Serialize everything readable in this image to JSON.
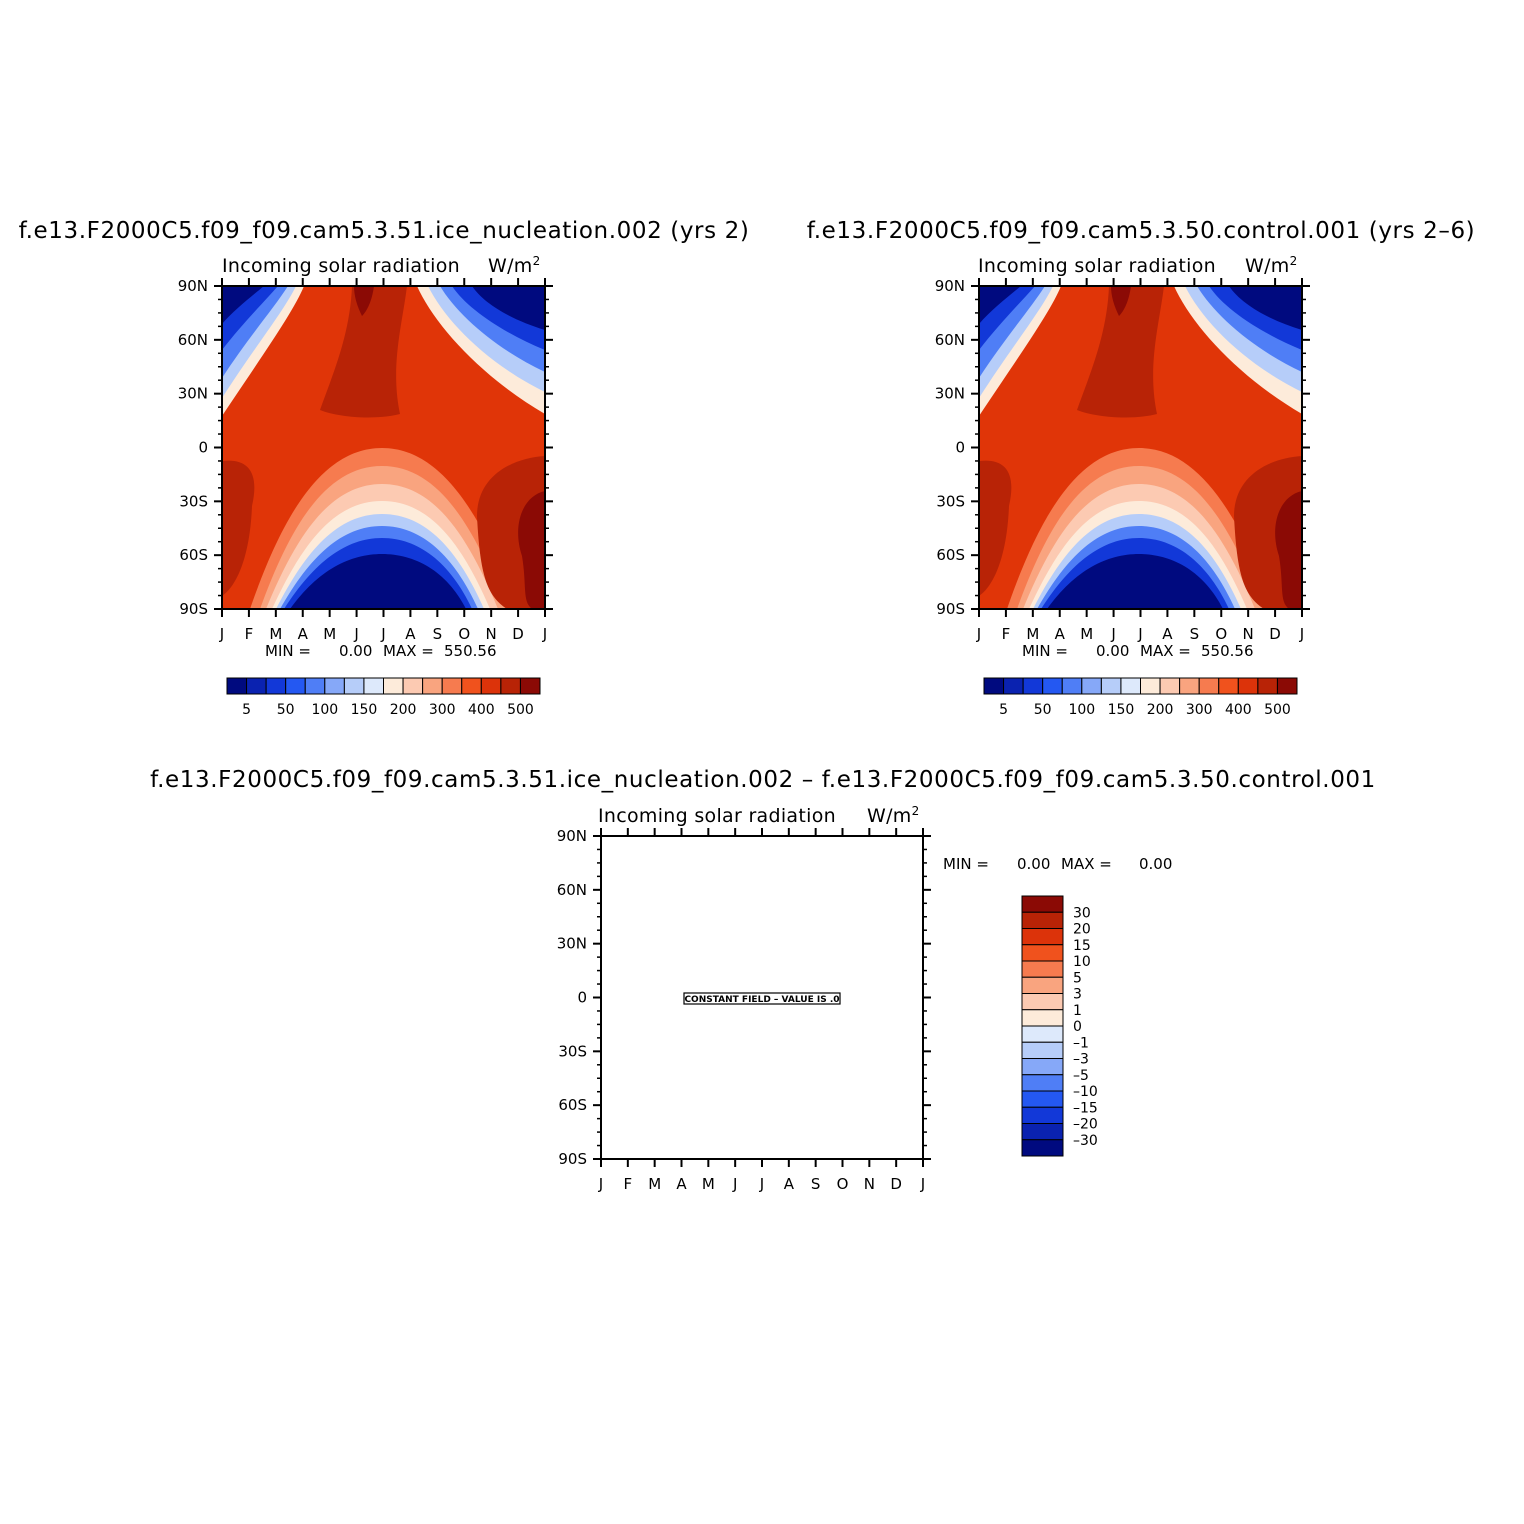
{
  "chart_data": [
    {
      "type": "heatmap",
      "title": "f.e13.F2000C5.f09_f09.cam5.3.51.ice_nucleation.002 (yrs 2)",
      "subtitle": "Incoming solar radiation",
      "units_base": "W/m",
      "units_sup": "2",
      "x_tick_labels": [
        "J",
        "F",
        "M",
        "A",
        "M",
        "J",
        "J",
        "A",
        "S",
        "O",
        "N",
        "D",
        "J"
      ],
      "y_tick_labels": [
        "90N",
        "60N",
        "30N",
        "0",
        "30S",
        "60S",
        "90S"
      ],
      "ylim": [
        -90,
        90
      ],
      "min_label": "MIN =",
      "min_value": "0.00",
      "max_label": "MAX =",
      "max_value": "550.56",
      "colorbar": {
        "orientation": "horizontal",
        "labels": [
          "5",
          "50",
          "100",
          "150",
          "200",
          "300",
          "400",
          "500"
        ],
        "colors": [
          "#000a7f",
          "#0a22b0",
          "#1238d8",
          "#2458f2",
          "#4f7ef6",
          "#86a8f8",
          "#b6cdf9",
          "#dde9fb",
          "#fdebda",
          "#fccab2",
          "#f9a47f",
          "#f67b4f",
          "#f0521d",
          "#dc330a",
          "#b82306",
          "#8b0a05"
        ]
      }
    },
    {
      "type": "heatmap",
      "title": "f.e13.F2000C5.f09_f09.cam5.3.50.control.001 (yrs 2–6)",
      "subtitle": "Incoming solar radiation",
      "units_base": "W/m",
      "units_sup": "2",
      "x_tick_labels": [
        "J",
        "F",
        "M",
        "A",
        "M",
        "J",
        "J",
        "A",
        "S",
        "O",
        "N",
        "D",
        "J"
      ],
      "y_tick_labels": [
        "90N",
        "60N",
        "30N",
        "0",
        "30S",
        "60S",
        "90S"
      ],
      "ylim": [
        -90,
        90
      ],
      "min_label": "MIN =",
      "min_value": "0.00",
      "max_label": "MAX =",
      "max_value": "550.56",
      "colorbar": {
        "orientation": "horizontal",
        "labels": [
          "5",
          "50",
          "100",
          "150",
          "200",
          "300",
          "400",
          "500"
        ],
        "colors": [
          "#000a7f",
          "#0a22b0",
          "#1238d8",
          "#2458f2",
          "#4f7ef6",
          "#86a8f8",
          "#b6cdf9",
          "#dde9fb",
          "#fdebda",
          "#fccab2",
          "#f9a47f",
          "#f67b4f",
          "#f0521d",
          "#dc330a",
          "#b82306",
          "#8b0a05"
        ]
      }
    },
    {
      "type": "heatmap",
      "title": "f.e13.F2000C5.f09_f09.cam5.3.51.ice_nucleation.002 – f.e13.F2000C5.f09_f09.cam5.3.50.control.001",
      "subtitle": "Incoming solar radiation",
      "units_base": "W/m",
      "units_sup": "2",
      "x_tick_labels": [
        "J",
        "F",
        "M",
        "A",
        "M",
        "J",
        "J",
        "A",
        "S",
        "O",
        "N",
        "D",
        "J"
      ],
      "y_tick_labels": [
        "90N",
        "60N",
        "30N",
        "0",
        "30S",
        "60S",
        "90S"
      ],
      "ylim": [
        -90,
        90
      ],
      "min_label": "MIN =",
      "min_value": "0.00",
      "max_label": "MAX =",
      "max_value": "0.00",
      "annotation": "CONSTANT FIELD – VALUE IS .0",
      "colorbar": {
        "orientation": "vertical",
        "labels": [
          "30",
          "20",
          "15",
          "10",
          "5",
          "3",
          "1",
          "0",
          "–1",
          "–3",
          "–5",
          "–10",
          "–15",
          "–20",
          "–30"
        ],
        "colors": [
          "#8b0a05",
          "#b82306",
          "#dc330a",
          "#f0521d",
          "#f67b4f",
          "#f9a47f",
          "#fccab2",
          "#fdebda",
          "#dde9fb",
          "#b6cdf9",
          "#86a8f8",
          "#4f7ef6",
          "#2458f2",
          "#1238d8",
          "#0a22b0",
          "#000a7f"
        ]
      }
    }
  ]
}
